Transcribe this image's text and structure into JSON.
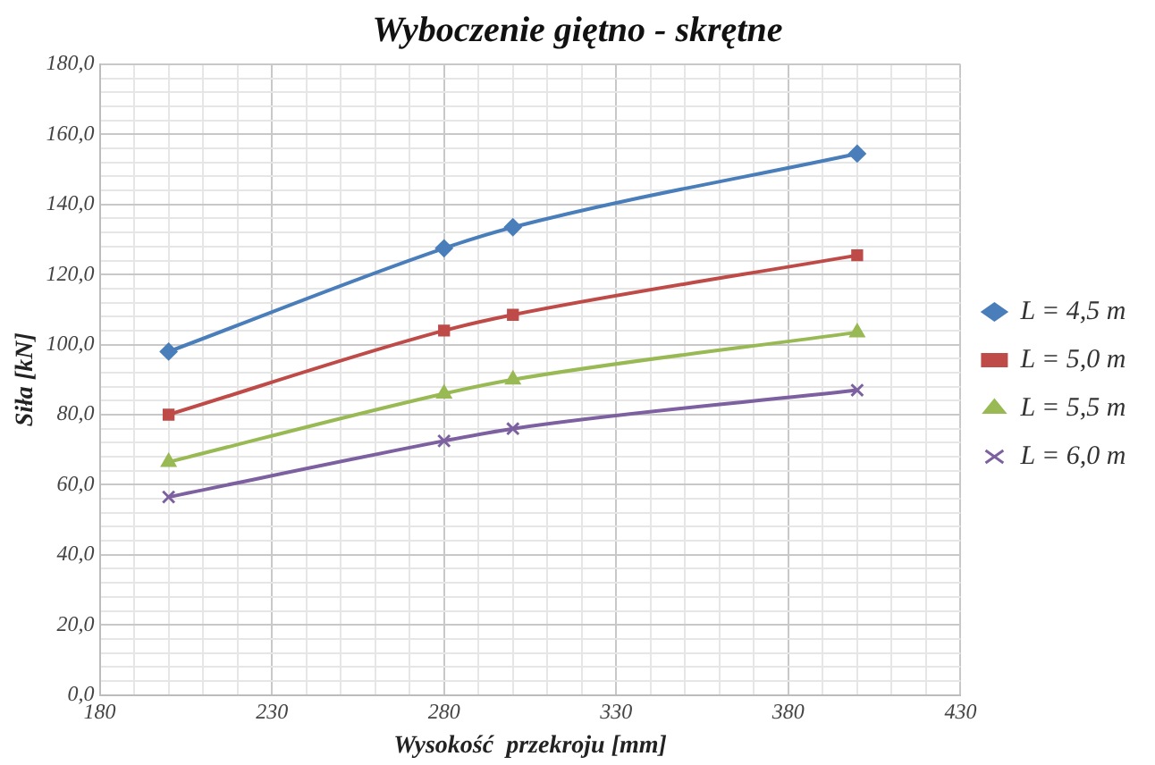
{
  "chart_data": {
    "type": "line",
    "title": "Wyboczenie giętno - skrętne",
    "xlabel": "Wysokość  przekroju [mm]",
    "ylabel": "Siła [kN]",
    "xlim": [
      180,
      430
    ],
    "xticks": [
      {
        "value": 180,
        "label": "180"
      },
      {
        "value": 190,
        "label": null
      },
      {
        "value": 200,
        "label": null
      },
      {
        "value": 210,
        "label": null
      },
      {
        "value": 220,
        "label": null
      },
      {
        "value": 230,
        "label": "230"
      },
      {
        "value": 240,
        "label": null
      },
      {
        "value": 250,
        "label": null
      },
      {
        "value": 260,
        "label": null
      },
      {
        "value": 270,
        "label": null
      },
      {
        "value": 280,
        "label": "280"
      },
      {
        "value": 290,
        "label": null
      },
      {
        "value": 300,
        "label": null
      },
      {
        "value": 310,
        "label": null
      },
      {
        "value": 320,
        "label": null
      },
      {
        "value": 330,
        "label": "330"
      },
      {
        "value": 340,
        "label": null
      },
      {
        "value": 350,
        "label": null
      },
      {
        "value": 360,
        "label": null
      },
      {
        "value": 370,
        "label": null
      },
      {
        "value": 380,
        "label": "380"
      },
      {
        "value": 390,
        "label": null
      },
      {
        "value": 400,
        "label": null
      },
      {
        "value": 410,
        "label": null
      },
      {
        "value": 420,
        "label": null
      },
      {
        "value": 430,
        "label": "430"
      }
    ],
    "ylim": [
      0,
      180
    ],
    "yticks": [
      {
        "value": 0,
        "label": "0,0"
      },
      {
        "value": 4,
        "label": null
      },
      {
        "value": 8,
        "label": null
      },
      {
        "value": 12,
        "label": null
      },
      {
        "value": 16,
        "label": null
      },
      {
        "value": 20,
        "label": "20,0"
      },
      {
        "value": 24,
        "label": null
      },
      {
        "value": 28,
        "label": null
      },
      {
        "value": 32,
        "label": null
      },
      {
        "value": 36,
        "label": null
      },
      {
        "value": 40,
        "label": "40,0"
      },
      {
        "value": 44,
        "label": null
      },
      {
        "value": 48,
        "label": null
      },
      {
        "value": 52,
        "label": null
      },
      {
        "value": 56,
        "label": null
      },
      {
        "value": 60,
        "label": "60,0"
      },
      {
        "value": 64,
        "label": null
      },
      {
        "value": 68,
        "label": null
      },
      {
        "value": 72,
        "label": null
      },
      {
        "value": 76,
        "label": null
      },
      {
        "value": 80,
        "label": "80,0"
      },
      {
        "value": 84,
        "label": null
      },
      {
        "value": 88,
        "label": null
      },
      {
        "value": 92,
        "label": null
      },
      {
        "value": 96,
        "label": null
      },
      {
        "value": 100,
        "label": "100,0"
      },
      {
        "value": 104,
        "label": null
      },
      {
        "value": 108,
        "label": null
      },
      {
        "value": 112,
        "label": null
      },
      {
        "value": 116,
        "label": null
      },
      {
        "value": 120,
        "label": "120,0"
      },
      {
        "value": 124,
        "label": null
      },
      {
        "value": 128,
        "label": null
      },
      {
        "value": 132,
        "label": null
      },
      {
        "value": 136,
        "label": null
      },
      {
        "value": 140,
        "label": "140,0"
      },
      {
        "value": 144,
        "label": null
      },
      {
        "value": 148,
        "label": null
      },
      {
        "value": 152,
        "label": null
      },
      {
        "value": 156,
        "label": null
      },
      {
        "value": 160,
        "label": "160,0"
      },
      {
        "value": 164,
        "label": null
      },
      {
        "value": 168,
        "label": null
      },
      {
        "value": 172,
        "label": null
      },
      {
        "value": 176,
        "label": null
      },
      {
        "value": 180,
        "label": "180,0"
      }
    ],
    "grid": true,
    "legend": "right",
    "x": [
      200,
      280,
      300,
      400
    ],
    "series": [
      {
        "name": "L = 4,5 m",
        "color": "#4a7ebb",
        "marker": "diamond",
        "values": [
          98,
          127.5,
          133.5,
          154.5
        ]
      },
      {
        "name": "L = 5,0 m",
        "color": "#be4b48",
        "marker": "square",
        "values": [
          80,
          104,
          108.5,
          125.5
        ]
      },
      {
        "name": "L = 5,5 m",
        "color": "#98b954",
        "marker": "triangle",
        "values": [
          66.5,
          86,
          90,
          103.5
        ]
      },
      {
        "name": "L = 6,0 m",
        "color": "#7d60a0",
        "marker": "cross",
        "values": [
          56.5,
          72.5,
          76,
          87
        ]
      }
    ]
  }
}
